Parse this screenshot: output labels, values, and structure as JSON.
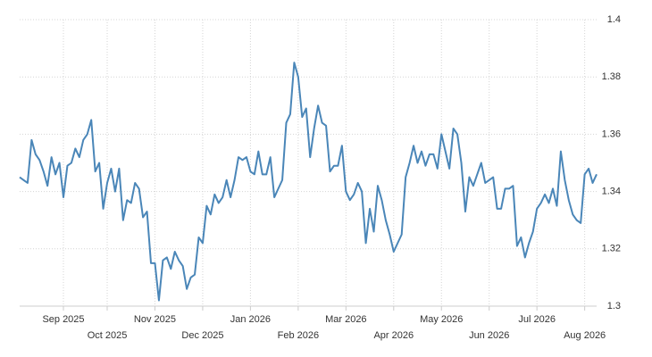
{
  "chart_data": {
    "type": "line",
    "categories": [
      null,
      null,
      null,
      null,
      null,
      null,
      null,
      null,
      null,
      null,
      null,
      "Sep 2025",
      null,
      null,
      null,
      null,
      null,
      null,
      null,
      null,
      null,
      null,
      "Oct 2025",
      null,
      null,
      null,
      null,
      null,
      null,
      null,
      null,
      null,
      null,
      null,
      "Nov 2025",
      null,
      null,
      null,
      null,
      null,
      null,
      null,
      null,
      null,
      null,
      null,
      "Dec 2025",
      null,
      null,
      null,
      null,
      null,
      null,
      null,
      null,
      null,
      null,
      null,
      "Jan 2026",
      null,
      null,
      null,
      null,
      null,
      null,
      null,
      null,
      null,
      null,
      null,
      "Feb 2026",
      null,
      null,
      null,
      null,
      null,
      null,
      null,
      null,
      null,
      null,
      null,
      "Mar 2026",
      null,
      null,
      null,
      null,
      null,
      null,
      null,
      null,
      null,
      null,
      null,
      "Apr 2026",
      null,
      null,
      null,
      null,
      null,
      null,
      null,
      null,
      null,
      null,
      null,
      "May 2026",
      null,
      null,
      null,
      null,
      null,
      null,
      null,
      null,
      null,
      null,
      null,
      "Jun 2026",
      null,
      null,
      null,
      null,
      null,
      null,
      null,
      null,
      null,
      null,
      null,
      "Jul 2026",
      null,
      null,
      null,
      null,
      null,
      null,
      null,
      null,
      null,
      null,
      null,
      "Aug 2026",
      null,
      null,
      null
    ],
    "values": [
      1.345,
      1.344,
      1.343,
      1.358,
      1.353,
      1.351,
      1.347,
      1.342,
      1.352,
      1.346,
      1.35,
      1.338,
      1.349,
      1.35,
      1.355,
      1.352,
      1.358,
      1.36,
      1.365,
      1.347,
      1.35,
      1.334,
      1.343,
      1.348,
      1.34,
      1.348,
      1.33,
      1.337,
      1.336,
      1.343,
      1.341,
      1.331,
      1.333,
      1.315,
      1.315,
      1.302,
      1.316,
      1.317,
      1.313,
      1.319,
      1.316,
      1.314,
      1.306,
      1.31,
      1.311,
      1.324,
      1.322,
      1.335,
      1.332,
      1.339,
      1.336,
      1.338,
      1.344,
      1.338,
      1.344,
      1.352,
      1.351,
      1.352,
      1.347,
      1.346,
      1.354,
      1.346,
      1.346,
      1.352,
      1.338,
      1.341,
      1.344,
      1.364,
      1.367,
      1.385,
      1.38,
      1.366,
      1.369,
      1.352,
      1.362,
      1.37,
      1.364,
      1.363,
      1.347,
      1.349,
      1.349,
      1.356,
      1.34,
      1.337,
      1.339,
      1.343,
      1.34,
      1.322,
      1.334,
      1.326,
      1.342,
      1.337,
      1.33,
      1.325,
      1.319,
      1.322,
      1.325,
      1.345,
      1.35,
      1.356,
      1.35,
      1.354,
      1.349,
      1.353,
      1.353,
      1.348,
      1.36,
      1.354,
      1.348,
      1.362,
      1.36,
      1.35,
      1.333,
      1.345,
      1.342,
      1.346,
      1.35,
      1.343,
      1.344,
      1.345,
      1.334,
      1.334,
      1.341,
      1.341,
      1.342,
      1.321,
      1.324,
      1.317,
      1.322,
      1.326,
      1.334,
      1.336,
      1.339,
      1.336,
      1.341,
      1.335,
      1.354,
      1.344,
      1.337,
      1.332,
      1.33,
      1.329,
      1.346,
      1.348,
      1.343,
      1.346
    ],
    "color": "#4a86b8",
    "ylim": [
      1.3,
      1.4
    ],
    "yticks": [
      1.3,
      1.32,
      1.34,
      1.36,
      1.38,
      1.4
    ],
    "grid": true
  }
}
